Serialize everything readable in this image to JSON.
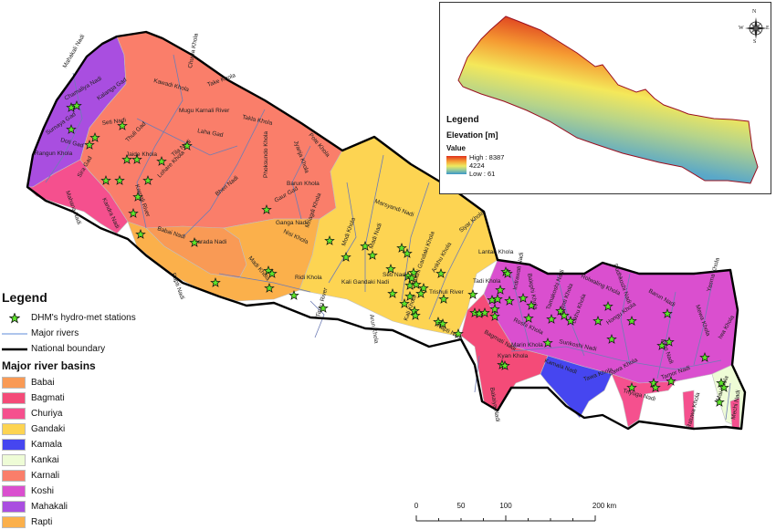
{
  "legend": {
    "title": "Legend",
    "items": [
      {
        "symbol": "green-star",
        "label": "DHM's hydro-met stations"
      },
      {
        "symbol": "blue-line",
        "label": "Major rivers"
      },
      {
        "symbol": "black-line",
        "label": "National boundary"
      }
    ],
    "basins_title": "Major river basins",
    "basins": [
      {
        "name": "Babai",
        "color": "#f99a55"
      },
      {
        "name": "Bagmati",
        "color": "#f44b78"
      },
      {
        "name": "Churiya",
        "color": "#f5508e"
      },
      {
        "name": "Gandaki",
        "color": "#fdd452"
      },
      {
        "name": "Kamala",
        "color": "#4646f0"
      },
      {
        "name": "Kankai",
        "color": "#eefcd6"
      },
      {
        "name": "Karnali",
        "color": "#fa7e6a"
      },
      {
        "name": "Koshi",
        "color": "#da4fcf"
      },
      {
        "name": "Mahakali",
        "color": "#a94ee0"
      },
      {
        "name": "Rapti",
        "color": "#fbb04b"
      }
    ]
  },
  "colors": {
    "river": "#6e7db5",
    "boundary": "#000000",
    "station": "#5de62a"
  },
  "rivers": [
    "Mahakali Nadi",
    "Chamaliya Nadi",
    "Kalanga Gad",
    "Surnaya Gad",
    "Seti Nadi",
    "Doti Gad",
    "Thuli Gad",
    "Rangun Khola",
    "Jaide Khola",
    "Tila Nadi",
    "Sira Gad",
    "Lohare Khola",
    "Karnali River",
    "Mahana Nadi",
    "Kandra Nadi",
    "Babai Nadi",
    "Chuwa Khola",
    "Kawadi Khola",
    "Take Khola",
    "Mugu Karnali River",
    "Takla Khola",
    "Laha Gad",
    "Phoksundo Khola",
    "Jyanja Khola",
    "Pote Khola",
    "Bheri Nadi",
    "Barun Khola",
    "Gaur Gad",
    "Ganga Nadi",
    "Nisi Khola",
    "Mriagdi Khola",
    "Sarada Nadi",
    "Madi Khola",
    "Rapti Nadi",
    "Tinau River",
    "Ridi Khola",
    "Kali Gandaki Nadi",
    "Modi Khola",
    "Madi Nadi",
    "Marsyandi Nadi",
    "Seti Nadi",
    "Arun Khola",
    "Budhi Gandaki Khola",
    "Ankhu Khola",
    "Siyar Khola",
    "Trishuli River",
    "Tadi Khola",
    "Lantan Khola",
    "Kali Khola",
    "Rapti Nadi",
    "Bagmati Nadi",
    "Indrawati Nadi",
    "Balephi Khola",
    "Roshi Khola",
    "Tamakoshi Nadi",
    "Khimti Khola",
    "Likhu Khola",
    "Rolwaling Khola",
    "Dudhkoshi Nadi",
    "Sunkoshi Nadi",
    "Marin Khola",
    "Kyan Khola",
    "Bakaiya Nadi",
    "Hongu Khola",
    "Kamala Nadi",
    "Tawa Khola",
    "Sawa Khola",
    "Triyuga Nadi",
    "Arun Nadi",
    "Tamor Nadi",
    "Mewa Khola",
    "Yasma Khola",
    "Barun Nadi",
    "Iwa Khola",
    "Ratuwa Khola",
    "Mechi Nadi",
    "Mai Khola"
  ],
  "inset": {
    "legend_title": "Legend",
    "layer": "Elevation [m]",
    "value_label": "Value",
    "high": "High : 8387",
    "mid": "4224",
    "low": "Low : 61",
    "compass": {
      "n": "N",
      "s": "S",
      "e": "E",
      "w": "W"
    }
  },
  "scale_bar": {
    "ticks": [
      "0",
      "50",
      "100",
      "200 km"
    ]
  }
}
